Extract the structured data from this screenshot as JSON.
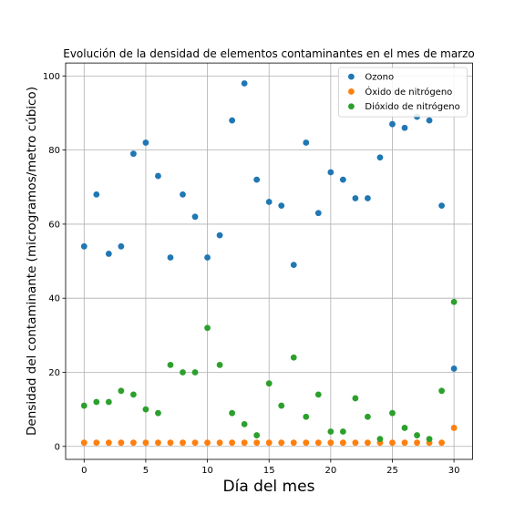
{
  "chart_data": {
    "type": "scatter",
    "title": "Evolución de la densidad de elementos contaminantes en el mes de marzo",
    "xlabel": "Día del mes",
    "ylabel": "Densidad del contaminante (microgramos/metro cúbico)",
    "xlim": [
      -1.5,
      31.5
    ],
    "ylim": [
      -3.5,
      103.5
    ],
    "xticks": [
      0,
      5,
      10,
      15,
      20,
      25,
      30
    ],
    "yticks": [
      0,
      20,
      40,
      60,
      80,
      100
    ],
    "grid": true,
    "legend_position": "top-right",
    "x": [
      0,
      1,
      2,
      3,
      4,
      5,
      6,
      7,
      8,
      9,
      10,
      11,
      12,
      13,
      14,
      15,
      16,
      17,
      18,
      19,
      20,
      21,
      22,
      23,
      24,
      25,
      26,
      27,
      28,
      29,
      30
    ],
    "series": [
      {
        "name": "Ozono",
        "color": "#1f77b4",
        "values": [
          54,
          68,
          52,
          54,
          79,
          82,
          73,
          51,
          68,
          62,
          51,
          57,
          88,
          98,
          72,
          66,
          65,
          49,
          82,
          63,
          74,
          72,
          67,
          67,
          78,
          87,
          86,
          89,
          88,
          65,
          21
        ]
      },
      {
        "name": "Óxido de nitrógeno",
        "color": "#ff7f0e",
        "values": [
          1,
          1,
          1,
          1,
          1,
          1,
          1,
          1,
          1,
          1,
          1,
          1,
          1,
          1,
          1,
          1,
          1,
          1,
          1,
          1,
          1,
          1,
          1,
          1,
          1,
          1,
          1,
          1,
          1,
          1,
          5
        ]
      },
      {
        "name": "Dióxido de nitrógeno",
        "color": "#2ca02c",
        "values": [
          11,
          12,
          12,
          15,
          14,
          10,
          9,
          22,
          20,
          20,
          32,
          22,
          9,
          6,
          3,
          17,
          11,
          24,
          8,
          14,
          4,
          4,
          13,
          8,
          2,
          9,
          5,
          3,
          2,
          15,
          39
        ]
      }
    ]
  }
}
